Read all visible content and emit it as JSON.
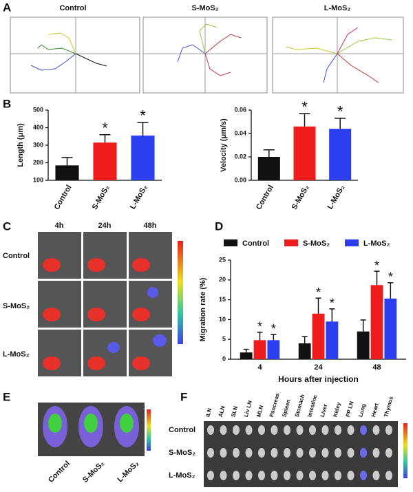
{
  "panel_labels": [
    "A",
    "B",
    "C",
    "D",
    "E",
    "F"
  ],
  "panel_a": {
    "titles": [
      "Control",
      "S-MoS₂",
      "L-MoS₂"
    ]
  },
  "panel_c": {
    "columns": [
      "4h",
      "24h",
      "48h"
    ],
    "rows": [
      "Control",
      "S-MoS₂",
      "L-MoS₂"
    ]
  },
  "panel_e": {
    "labels": [
      "Control",
      "S-MoS₂",
      "L-MoS₂"
    ]
  },
  "panel_f": {
    "organs": [
      "ILN",
      "ALN",
      "SLN",
      "Liv LN",
      "MLN",
      "Pancreas",
      "Spleen",
      "Stomach",
      "Intestine",
      "Liver",
      "Kidey",
      "PP LN",
      "Lung",
      "Heart",
      "Thymus"
    ],
    "rows": [
      "Control",
      "S-MoS₂",
      "L-MoS₂"
    ]
  },
  "chart_data": [
    {
      "type": "bar",
      "ylabel": "Length (μm)",
      "categories": [
        "Control",
        "S-MoS₂",
        "L-MoS₂"
      ],
      "values": [
        185,
        315,
        355
      ],
      "errors": [
        45,
        45,
        75
      ],
      "colors": [
        "#111111",
        "#ee1c1c",
        "#2b3ff0"
      ],
      "significance": [
        null,
        "*",
        "*"
      ],
      "ylim": [
        100,
        500
      ],
      "yticks": [
        100,
        200,
        300,
        400,
        500
      ]
    },
    {
      "type": "bar",
      "ylabel": "Velocity (μm/s)",
      "categories": [
        "Control",
        "S-MoS₂",
        "L-MoS₂"
      ],
      "values": [
        0.02,
        0.046,
        0.044
      ],
      "errors": [
        0.006,
        0.011,
        0.009
      ],
      "colors": [
        "#111111",
        "#ee1c1c",
        "#2b3ff0"
      ],
      "significance": [
        null,
        "*",
        "*"
      ],
      "ylim": [
        0,
        0.06
      ],
      "yticks": [
        {
          "value": 0,
          "label": "0.00"
        },
        0.02,
        0.04,
        0.06
      ]
    },
    {
      "type": "bar",
      "ylabel": "Migration rate (%)",
      "xlabel": "Hours after injection",
      "categories": [
        "4",
        "24",
        "48"
      ],
      "ylim": [
        0,
        25
      ],
      "yticks": [
        0,
        5,
        10,
        15,
        20,
        25
      ],
      "series": [
        {
          "name": "Control",
          "color": "#111111",
          "values": [
            1.7,
            4.0,
            7.0
          ],
          "errors": [
            0.8,
            1.7,
            2.9
          ],
          "significance": [
            null,
            null,
            null
          ]
        },
        {
          "name": "S-MoS₂",
          "color": "#ee1c1c",
          "values": [
            4.8,
            11.5,
            18.7
          ],
          "errors": [
            2.0,
            3.9,
            3.5
          ],
          "significance": [
            "*",
            "*",
            "*"
          ]
        },
        {
          "name": "L-MoS₂",
          "color": "#2b3ff0",
          "values": [
            4.8,
            9.5,
            15.3
          ],
          "errors": [
            1.4,
            3.2,
            4.0
          ],
          "significance": [
            "*",
            "*",
            "*"
          ]
        }
      ]
    }
  ]
}
